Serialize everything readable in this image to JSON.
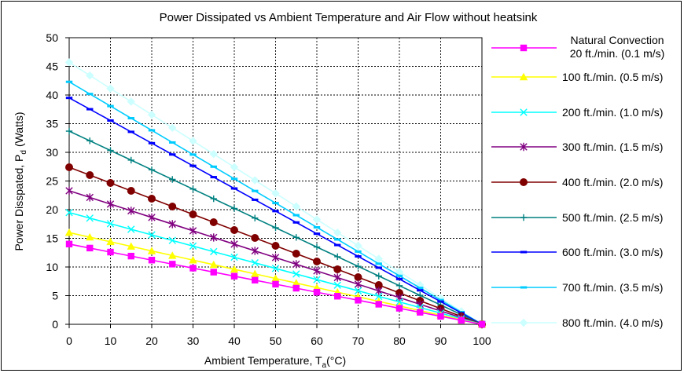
{
  "chart_data": {
    "type": "line",
    "title": "Power Dissipated vs Ambient Temperature and Air Flow without heatsink",
    "xlabel": "Ambient Temperature, T",
    "xlabel_sub": "a",
    "xlabel_unit": "(°C)",
    "ylabel": "Power Disspated, P",
    "ylabel_sub": "d",
    "ylabel_unit": "(Watts)",
    "xlim": [
      0,
      100
    ],
    "ylim": [
      0,
      50
    ],
    "x_ticks": [
      0,
      10,
      20,
      30,
      40,
      50,
      60,
      70,
      80,
      90,
      100
    ],
    "y_ticks": [
      0,
      5,
      10,
      15,
      20,
      25,
      30,
      35,
      40,
      45,
      50
    ],
    "grid": true,
    "legend_position": "right",
    "x": [
      0,
      5,
      10,
      15,
      20,
      25,
      30,
      35,
      40,
      45,
      50,
      55,
      60,
      65,
      70,
      75,
      80,
      85,
      90,
      95,
      100
    ],
    "series": [
      {
        "name": "Natural Convection",
        "name_line2": "20 ft./min. (0.1 m/s)",
        "color": "#ff00ff",
        "marker": "square",
        "y0": 14.0
      },
      {
        "name": "100 ft./min. (0.5 m/s)",
        "color": "#ffff00",
        "marker": "triangle",
        "y0": 16.0
      },
      {
        "name": "200 ft./min. (1.0 m/s)",
        "color": "#00ffff",
        "marker": "x",
        "y0": 19.5
      },
      {
        "name": "300 ft./min. (1.5 m/s)",
        "color": "#800080",
        "marker": "star",
        "y0": 23.3
      },
      {
        "name": "400 ft./min. (2.0 m/s)",
        "color": "#800000",
        "marker": "circle",
        "y0": 27.4
      },
      {
        "name": "500 ft./min. (2.5 m/s)",
        "color": "#008080",
        "marker": "plus",
        "y0": 33.7
      },
      {
        "name": "600 ft./min. (3.0 m/s)",
        "color": "#0000ff",
        "marker": "dash",
        "y0": 39.5
      },
      {
        "name": "700 ft./min. (3.5 m/s)",
        "color": "#00ccff",
        "marker": "dash",
        "y0": 42.3
      },
      {
        "name": "800 ft./min. (4.0 m/s)",
        "color": "#ccffff",
        "marker": "diamond",
        "y0": 45.7
      }
    ],
    "series_endpoint": [
      100,
      0
    ]
  }
}
